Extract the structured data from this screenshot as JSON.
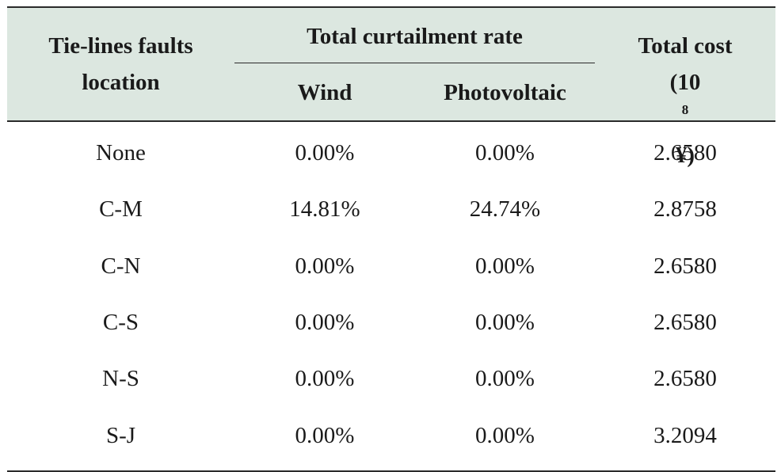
{
  "table": {
    "headers": {
      "location_line1": "Tie-lines faults",
      "location_line2": "location",
      "curtailment_group": "Total curtailment rate",
      "wind": "Wind",
      "photovoltaic": "Photovoltaic",
      "cost_line1": "Total cost",
      "cost_unit_base": "(10",
      "cost_unit_exp": "8",
      "cost_unit_tail": "¥)"
    },
    "rows": [
      {
        "location": "None",
        "wind": "0.00%",
        "photovoltaic": "0.00%",
        "cost": "2.6580"
      },
      {
        "location": "C-M",
        "wind": "14.81%",
        "photovoltaic": "24.74%",
        "cost": "2.8758"
      },
      {
        "location": "C-N",
        "wind": "0.00%",
        "photovoltaic": "0.00%",
        "cost": "2.6580"
      },
      {
        "location": "C-S",
        "wind": "0.00%",
        "photovoltaic": "0.00%",
        "cost": "2.6580"
      },
      {
        "location": "N-S",
        "wind": "0.00%",
        "photovoltaic": "0.00%",
        "cost": "2.6580"
      },
      {
        "location": "S-J",
        "wind": "0.00%",
        "photovoltaic": "0.00%",
        "cost": "3.2094"
      }
    ]
  },
  "colors": {
    "header_background": "#dce7e0",
    "rule_color": "#2a2a2a"
  }
}
